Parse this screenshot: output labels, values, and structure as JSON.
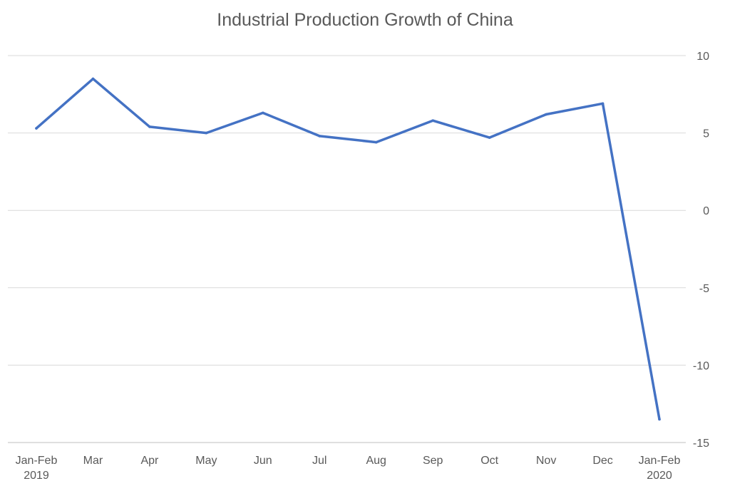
{
  "chart_data": {
    "type": "line",
    "title": "Industrial Production Growth of China",
    "xlabel": "",
    "ylabel": "",
    "categories": [
      [
        "Jan-Feb",
        "2019"
      ],
      [
        "Mar"
      ],
      [
        "Apr"
      ],
      [
        "May"
      ],
      [
        "Jun"
      ],
      [
        "Jul"
      ],
      [
        "Aug"
      ],
      [
        "Sep"
      ],
      [
        "Oct"
      ],
      [
        "Nov"
      ],
      [
        "Dec"
      ],
      [
        "Jan-Feb",
        "2020"
      ]
    ],
    "series": [
      {
        "values": [
          5.3,
          8.5,
          5.4,
          5.0,
          6.3,
          4.8,
          4.4,
          5.8,
          4.7,
          6.2,
          6.9,
          -13.5
        ],
        "color": "#4472c4"
      }
    ],
    "ylim": [
      -15,
      10
    ],
    "yticks": [
      10,
      5,
      0,
      -5,
      -10,
      -15
    ],
    "y_axis_position": "right",
    "grid": true,
    "legend": "none"
  }
}
